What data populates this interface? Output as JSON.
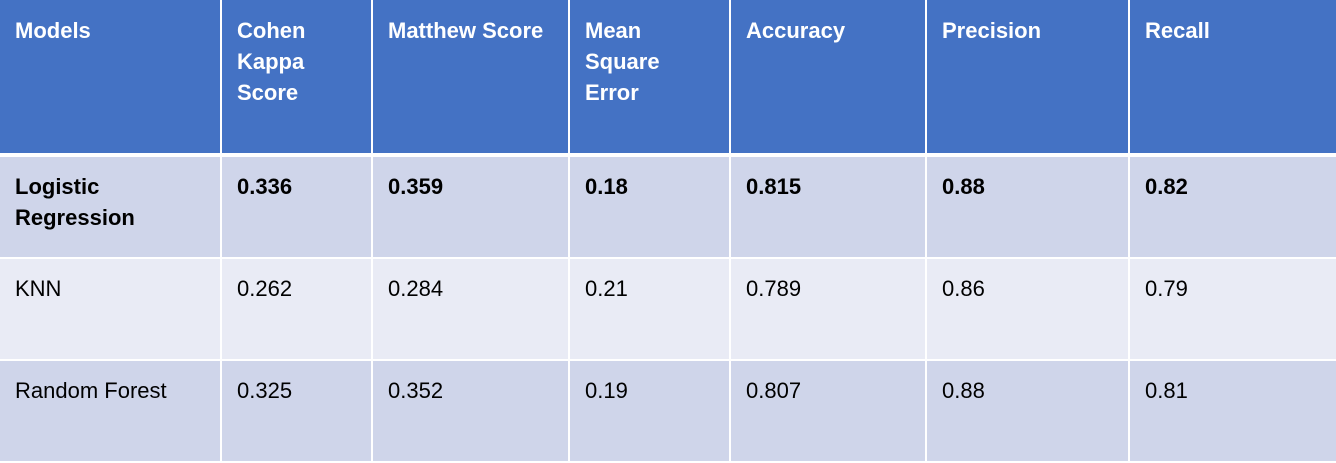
{
  "table": {
    "headers": [
      "Models",
      "Cohen Kappa Score",
      "Matthew Score",
      "Mean Square Error",
      "Accuracy",
      "Precision",
      "Recall"
    ],
    "rows": [
      {
        "bold": true,
        "cells": [
          "Logistic Regression",
          "0.336",
          "0.359",
          "0.18",
          "0.815",
          "0.88",
          "0.82"
        ]
      },
      {
        "bold": false,
        "cells": [
          "KNN",
          "0.262",
          "0.284",
          "0.21",
          "0.789",
          "0.86",
          "0.79"
        ]
      },
      {
        "bold": false,
        "cells": [
          "Random Forest",
          "0.325",
          "0.352",
          "0.19",
          "0.807",
          "0.88",
          "0.81"
        ]
      }
    ]
  },
  "colors": {
    "header_background": "#4472c4",
    "header_text": "#ffffff",
    "row_band_dark": "#cfd5ea",
    "row_band_light": "#e9ebf5"
  }
}
